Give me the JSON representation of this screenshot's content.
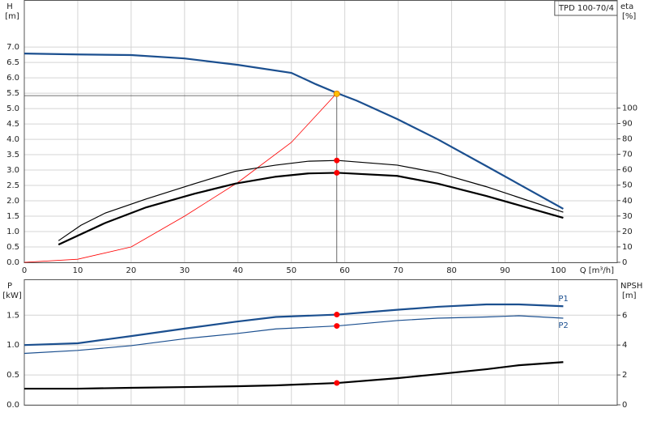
{
  "chart_data": [
    {
      "type": "line",
      "annotation": "TPD 100-70/4",
      "ylabel": "H",
      "yunit": "[m]",
      "y2label": "eta",
      "y2unit": "[%]",
      "xlabel": "Q [m³/h]",
      "xlim": [
        0,
        111
      ],
      "xticks": [
        0,
        10,
        20,
        30,
        40,
        50,
        60,
        70,
        80,
        90,
        100
      ],
      "xtick_labels": true,
      "ylim": [
        0,
        8.53
      ],
      "yticks": [
        {
          "value": 0,
          "label": "0.0"
        },
        0.5,
        {
          "value": 1,
          "label": "1.0"
        },
        1.5,
        {
          "value": 2,
          "label": "2.0"
        },
        2.5,
        {
          "value": 3,
          "label": "3.0"
        },
        3.5,
        {
          "value": 4,
          "label": "4.0"
        },
        4.5,
        {
          "value": 5,
          "label": "5.0"
        },
        5.5,
        {
          "value": 6,
          "label": "6.0"
        },
        6.5,
        {
          "value": 7,
          "label": "7.0"
        }
      ],
      "y2lim": [
        0,
        170
      ],
      "y2ticks": [
        0,
        10,
        20,
        30,
        40,
        50,
        60,
        70,
        80,
        90,
        100
      ],
      "grid": true,
      "operating_point": {
        "x": 58.5,
        "y": 5.42
      },
      "series": [
        {
          "color": "#1b4f8f",
          "line_width": 2.2,
          "axis": "y",
          "x": [
            0,
            10,
            20,
            30,
            40,
            50,
            54.6,
            58.6,
            62.2,
            69.8,
            77.4,
            86.5,
            100.9
          ],
          "values": [
            6.79,
            6.76,
            6.74,
            6.63,
            6.42,
            6.16,
            5.79,
            5.5,
            5.26,
            4.66,
            4.0,
            3.13,
            1.74
          ]
        },
        {
          "color": "#ff0000",
          "line_width": 0.8,
          "axis": "y",
          "x": [
            0,
            10,
            20,
            30,
            40,
            50,
            58.5
          ],
          "values": [
            0,
            0.1,
            0.5,
            1.5,
            2.6,
            3.9,
            5.5
          ]
        },
        {
          "color": "#000000",
          "line_width": 1.2,
          "axis": "y2",
          "x": [
            6.4,
            10.6,
            15.2,
            22.8,
            31.9,
            39.5,
            47.1,
            53.1,
            58.7,
            69.8,
            77.4,
            86.5,
            100.9
          ],
          "values": [
            14,
            24,
            32,
            41,
            51,
            59,
            63,
            65.5,
            66,
            63,
            58,
            49,
            32.5
          ]
        },
        {
          "color": "#000000",
          "line_width": 2.2,
          "axis": "y2",
          "x": [
            6.4,
            15.2,
            22.8,
            31.9,
            39.5,
            47.1,
            53.1,
            58.7,
            69.8,
            77.4,
            86.5,
            100.9
          ],
          "values": [
            11.5,
            25.6,
            35.6,
            44.5,
            51,
            55.5,
            57.6,
            58,
            56,
            51,
            43,
            28.8
          ]
        }
      ],
      "markers": [
        {
          "x": 58.5,
          "y": 5.48,
          "color": "#ffc000",
          "axis": "y"
        },
        {
          "x": 58.5,
          "y": 66,
          "color": "#ff0000",
          "axis": "y2"
        },
        {
          "x": 58.5,
          "y": 58,
          "color": "#ff0000",
          "axis": "y2"
        }
      ]
    },
    {
      "type": "line",
      "ylabel": "P",
      "yunit": "[kW]",
      "y2label": "NPSH",
      "y2unit": "[m]",
      "xlim": [
        0,
        111
      ],
      "xticks": [
        0,
        10,
        20,
        30,
        40,
        50,
        60,
        70,
        80,
        90,
        100
      ],
      "xtick_labels": false,
      "ylim": [
        0,
        2.1
      ],
      "yticks": [
        {
          "value": 0,
          "label": "0.0"
        },
        0.5,
        {
          "value": 1,
          "label": "1.0"
        },
        1.5
      ],
      "y2lim": [
        0,
        8.4
      ],
      "y2ticks": [
        0,
        2,
        4,
        6
      ],
      "grid": true,
      "series": [
        {
          "name": "P1",
          "color": "#1b4f8f",
          "line_width": 2.2,
          "axis": "y",
          "x": [
            0,
            10,
            20,
            30.4,
            39.5,
            47.1,
            58.6,
            69.8,
            77.4,
            86.5,
            92.6,
            100.9
          ],
          "values": [
            1.0,
            1.03,
            1.15,
            1.28,
            1.39,
            1.47,
            1.51,
            1.59,
            1.64,
            1.68,
            1.68,
            1.65
          ]
        },
        {
          "name": "P2",
          "color": "#1b4f8f",
          "line_width": 1.2,
          "axis": "y",
          "x": [
            0,
            10,
            20,
            30.4,
            39.5,
            47.1,
            58.6,
            69.8,
            77.4,
            86.5,
            92.6,
            100.9
          ],
          "values": [
            0.86,
            0.91,
            0.99,
            1.11,
            1.19,
            1.27,
            1.32,
            1.41,
            1.45,
            1.47,
            1.49,
            1.45
          ]
        },
        {
          "color": "#000000",
          "line_width": 2.2,
          "axis": "y2",
          "x": [
            0,
            10,
            20,
            30.4,
            39.5,
            47.1,
            58.6,
            69.8,
            77.4,
            86.5,
            92.6,
            100.9
          ],
          "values": [
            1.08,
            1.08,
            1.14,
            1.19,
            1.24,
            1.3,
            1.46,
            1.78,
            2.05,
            2.38,
            2.65,
            2.86
          ]
        }
      ],
      "markers": [
        {
          "x": 58.5,
          "y": 1.51,
          "color": "#ff0000",
          "axis": "y"
        },
        {
          "x": 58.5,
          "y": 1.32,
          "color": "#ff0000",
          "axis": "y"
        },
        {
          "x": 58.5,
          "y": 1.46,
          "color": "#ff0000",
          "axis": "y2"
        }
      ]
    }
  ]
}
